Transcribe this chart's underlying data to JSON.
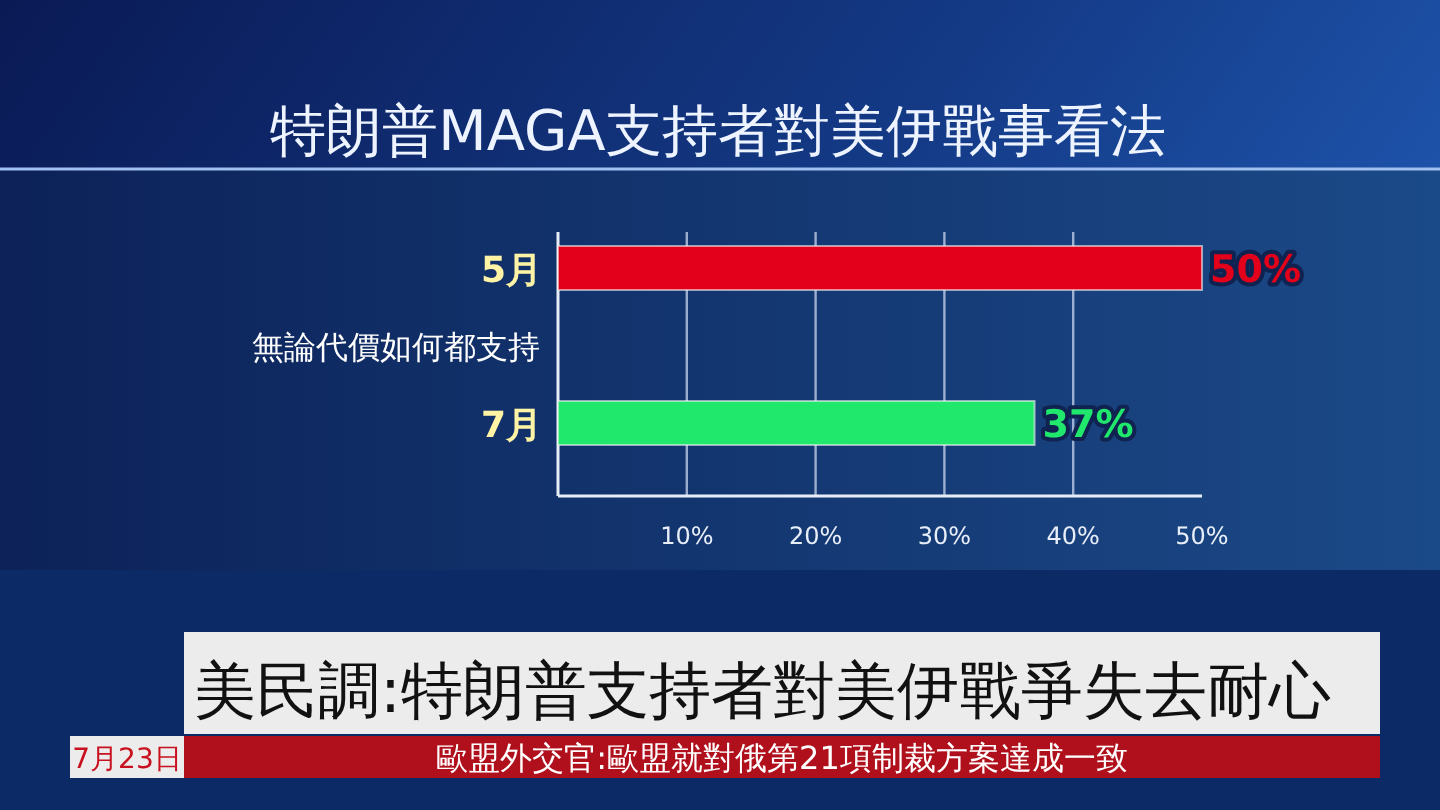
{
  "chart_data": {
    "type": "bar",
    "orientation": "horizontal",
    "title": "特朗普MAGA支持者對美伊戰事看法",
    "ylabel": "無論代價如何都支持",
    "categories": [
      "5月",
      "7月"
    ],
    "values": [
      50,
      37
    ],
    "colors": [
      "#e2001a",
      "#1fe86c"
    ],
    "value_labels": [
      "50%",
      "37%"
    ],
    "xlim": [
      0,
      50
    ],
    "xticks": [
      {
        "value": 10,
        "label": "10%"
      },
      {
        "value": 20,
        "label": "20%"
      },
      {
        "value": 30,
        "label": "30%"
      },
      {
        "value": 40,
        "label": "40%"
      },
      {
        "value": 50,
        "label": "50%"
      }
    ],
    "grid": "x",
    "annotations": [
      "美民調:特朗普支持者對美伊戰爭失去耐心",
      "7月23日",
      "歐盟外交官:歐盟就對俄第21項制裁方案達成一致"
    ]
  }
}
